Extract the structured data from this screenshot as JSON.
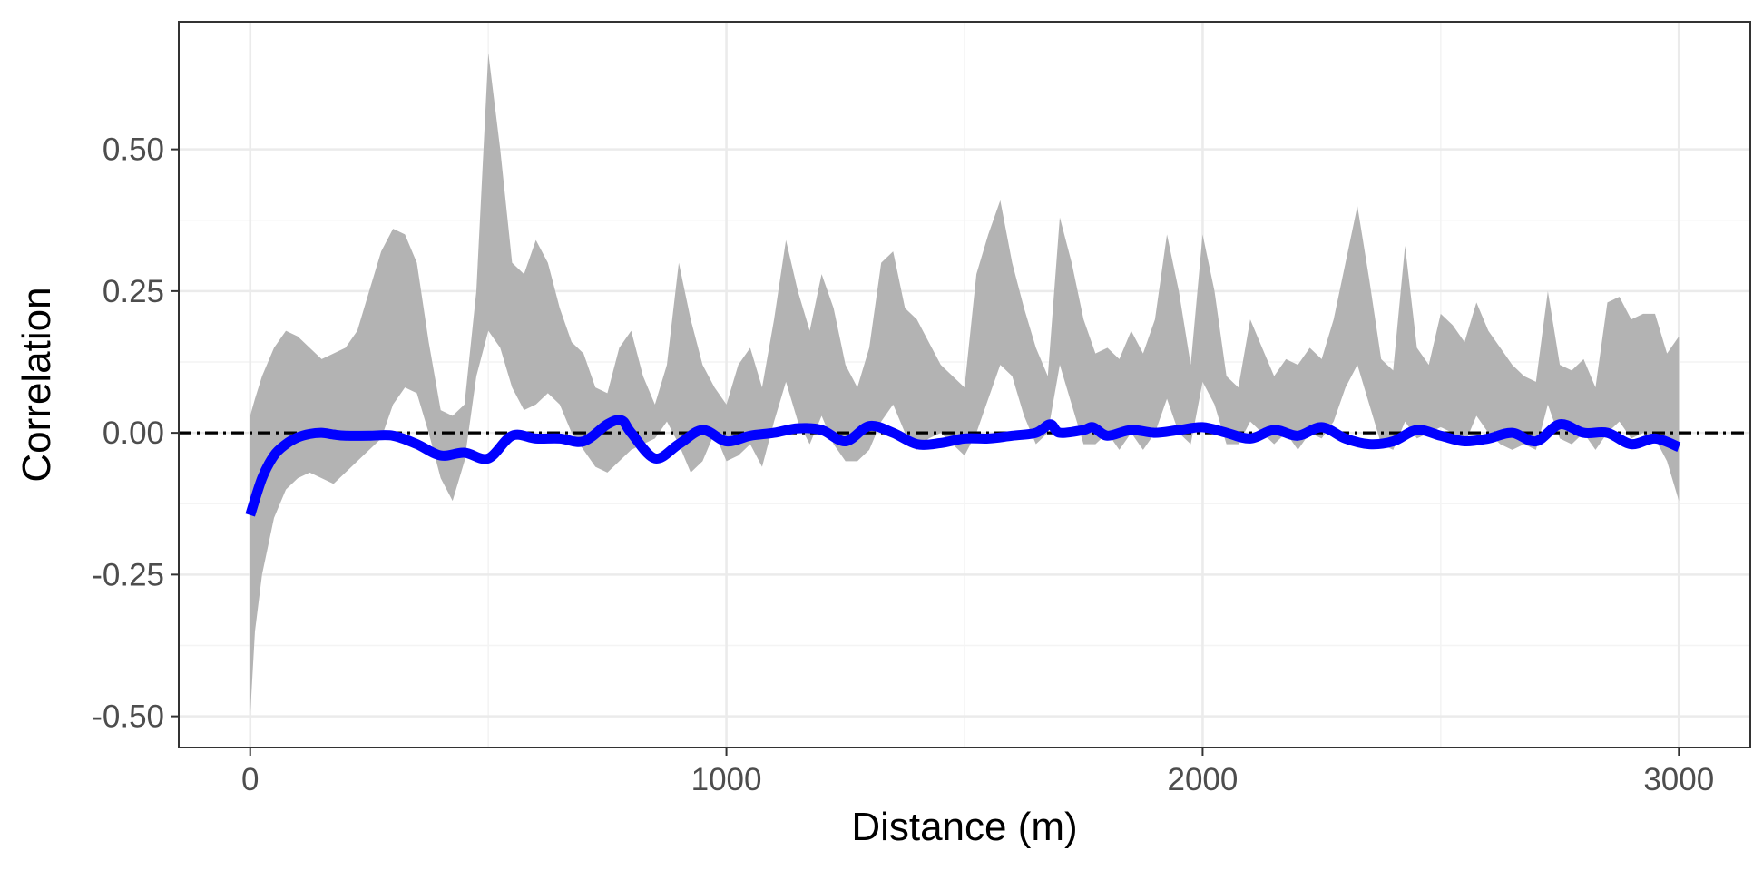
{
  "chart_data": {
    "type": "line",
    "xlabel": "Distance (m)",
    "ylabel": "Correlation",
    "xlim": [
      -150,
      3150
    ],
    "ylim": [
      -0.555,
      0.725
    ],
    "x_ticks": [
      0,
      1000,
      2000,
      3000
    ],
    "x_tick_labels": [
      "0",
      "1000",
      "2000",
      "3000"
    ],
    "y_ticks": [
      -0.5,
      -0.25,
      0.0,
      0.25,
      0.5
    ],
    "y_tick_labels": [
      "-0.50",
      "-0.25",
      "0.00",
      "0.25",
      "0.50"
    ],
    "grid": true,
    "reference_line": {
      "y": 0,
      "style": "dotdash",
      "color": "#000000"
    },
    "colors": {
      "line": "#0000ff",
      "band": "#b3b3b3",
      "panel_border": "#333333"
    },
    "series": [
      {
        "type": "line",
        "x": [
          0,
          25,
          50,
          75,
          100,
          125,
          150,
          175,
          200,
          250,
          300,
          350,
          400,
          450,
          500,
          550,
          600,
          650,
          700,
          750,
          780,
          800,
          850,
          900,
          950,
          1000,
          1050,
          1100,
          1150,
          1200,
          1250,
          1300,
          1350,
          1400,
          1450,
          1500,
          1550,
          1600,
          1650,
          1680,
          1700,
          1750,
          1770,
          1800,
          1850,
          1900,
          1950,
          2000,
          2050,
          2100,
          2150,
          2200,
          2250,
          2300,
          2350,
          2400,
          2450,
          2500,
          2550,
          2600,
          2650,
          2700,
          2750,
          2800,
          2850,
          2900,
          2950,
          3000
        ],
        "y": [
          -0.145,
          -0.08,
          -0.04,
          -0.02,
          -0.008,
          -0.002,
          0.0,
          -0.003,
          -0.005,
          -0.005,
          -0.005,
          -0.02,
          -0.04,
          -0.035,
          -0.045,
          -0.005,
          -0.01,
          -0.01,
          -0.015,
          0.015,
          0.022,
          0.0,
          -0.045,
          -0.02,
          0.005,
          -0.015,
          -0.005,
          0.0,
          0.008,
          0.005,
          -0.015,
          0.012,
          0.0,
          -0.02,
          -0.018,
          -0.01,
          -0.01,
          -0.005,
          0.0,
          0.015,
          0.0,
          0.005,
          0.01,
          -0.005,
          0.005,
          0.0,
          0.005,
          0.01,
          0.0,
          -0.01,
          0.005,
          -0.005,
          0.01,
          -0.01,
          -0.02,
          -0.015,
          0.005,
          -0.005,
          -0.015,
          -0.01,
          0.0,
          -0.015,
          0.015,
          0.0,
          0.0,
          -0.02,
          -0.01,
          -0.025
        ]
      },
      {
        "type": "band",
        "x": [
          0,
          10,
          25,
          50,
          75,
          100,
          125,
          150,
          175,
          200,
          225,
          250,
          275,
          300,
          325,
          350,
          375,
          400,
          425,
          450,
          475,
          500,
          525,
          550,
          575,
          600,
          625,
          650,
          675,
          700,
          725,
          750,
          775,
          800,
          825,
          850,
          875,
          900,
          925,
          950,
          975,
          1000,
          1025,
          1050,
          1075,
          1100,
          1125,
          1150,
          1175,
          1200,
          1225,
          1250,
          1275,
          1300,
          1325,
          1350,
          1375,
          1400,
          1425,
          1450,
          1475,
          1500,
          1525,
          1550,
          1575,
          1600,
          1625,
          1650,
          1675,
          1700,
          1725,
          1750,
          1775,
          1800,
          1825,
          1850,
          1875,
          1900,
          1925,
          1950,
          1975,
          2000,
          2025,
          2050,
          2075,
          2100,
          2125,
          2150,
          2175,
          2200,
          2225,
          2250,
          2275,
          2300,
          2325,
          2350,
          2375,
          2400,
          2425,
          2450,
          2475,
          2500,
          2525,
          2550,
          2575,
          2600,
          2625,
          2650,
          2675,
          2700,
          2725,
          2750,
          2775,
          2800,
          2825,
          2850,
          2875,
          2900,
          2925,
          2950,
          2975,
          3000
        ],
        "upper": [
          0.03,
          0.06,
          0.1,
          0.15,
          0.18,
          0.17,
          0.15,
          0.13,
          0.14,
          0.15,
          0.18,
          0.25,
          0.32,
          0.36,
          0.35,
          0.3,
          0.16,
          0.04,
          0.03,
          0.05,
          0.25,
          0.67,
          0.5,
          0.3,
          0.28,
          0.34,
          0.3,
          0.22,
          0.16,
          0.14,
          0.08,
          0.07,
          0.15,
          0.18,
          0.1,
          0.05,
          0.12,
          0.3,
          0.2,
          0.12,
          0.08,
          0.05,
          0.12,
          0.15,
          0.08,
          0.2,
          0.34,
          0.25,
          0.18,
          0.28,
          0.22,
          0.12,
          0.08,
          0.15,
          0.3,
          0.32,
          0.22,
          0.2,
          0.16,
          0.12,
          0.1,
          0.08,
          0.28,
          0.35,
          0.41,
          0.3,
          0.22,
          0.15,
          0.1,
          0.38,
          0.3,
          0.2,
          0.14,
          0.15,
          0.13,
          0.18,
          0.14,
          0.2,
          0.35,
          0.25,
          0.12,
          0.35,
          0.25,
          0.1,
          0.08,
          0.2,
          0.15,
          0.1,
          0.13,
          0.12,
          0.15,
          0.13,
          0.2,
          0.3,
          0.4,
          0.27,
          0.13,
          0.11,
          0.33,
          0.15,
          0.12,
          0.21,
          0.19,
          0.16,
          0.23,
          0.18,
          0.15,
          0.12,
          0.1,
          0.09,
          0.25,
          0.12,
          0.11,
          0.13,
          0.08,
          0.23,
          0.24,
          0.2,
          0.21,
          0.21,
          0.14,
          0.17
        ],
        "lower": [
          -0.5,
          -0.35,
          -0.25,
          -0.15,
          -0.1,
          -0.08,
          -0.07,
          -0.08,
          -0.09,
          -0.07,
          -0.05,
          -0.03,
          -0.01,
          0.05,
          0.08,
          0.07,
          0.0,
          -0.08,
          -0.12,
          -0.05,
          0.1,
          0.18,
          0.15,
          0.08,
          0.04,
          0.05,
          0.07,
          0.05,
          0.0,
          -0.03,
          -0.06,
          -0.07,
          -0.05,
          -0.03,
          -0.02,
          -0.01,
          0.02,
          -0.02,
          -0.07,
          -0.05,
          0.0,
          -0.05,
          -0.04,
          -0.02,
          -0.06,
          0.02,
          0.09,
          0.02,
          -0.02,
          0.03,
          -0.02,
          -0.05,
          -0.05,
          -0.03,
          0.02,
          0.05,
          0.0,
          -0.03,
          -0.01,
          0.0,
          -0.02,
          -0.04,
          0.0,
          0.06,
          0.12,
          0.1,
          0.03,
          -0.02,
          0.0,
          0.12,
          0.05,
          -0.02,
          -0.02,
          0.0,
          -0.03,
          0.0,
          -0.03,
          0.0,
          0.06,
          0.0,
          -0.02,
          0.09,
          0.05,
          -0.02,
          -0.02,
          0.02,
          0.0,
          -0.02,
          0.0,
          -0.03,
          0.0,
          -0.01,
          0.02,
          0.08,
          0.12,
          0.05,
          -0.02,
          -0.03,
          0.02,
          -0.01,
          0.0,
          0.01,
          0.0,
          -0.02,
          0.03,
          0.0,
          -0.02,
          -0.03,
          -0.02,
          -0.03,
          0.05,
          -0.01,
          -0.02,
          0.0,
          -0.03,
          0.0,
          0.02,
          -0.01,
          0.0,
          -0.01,
          -0.05,
          -0.12
        ]
      }
    ]
  }
}
